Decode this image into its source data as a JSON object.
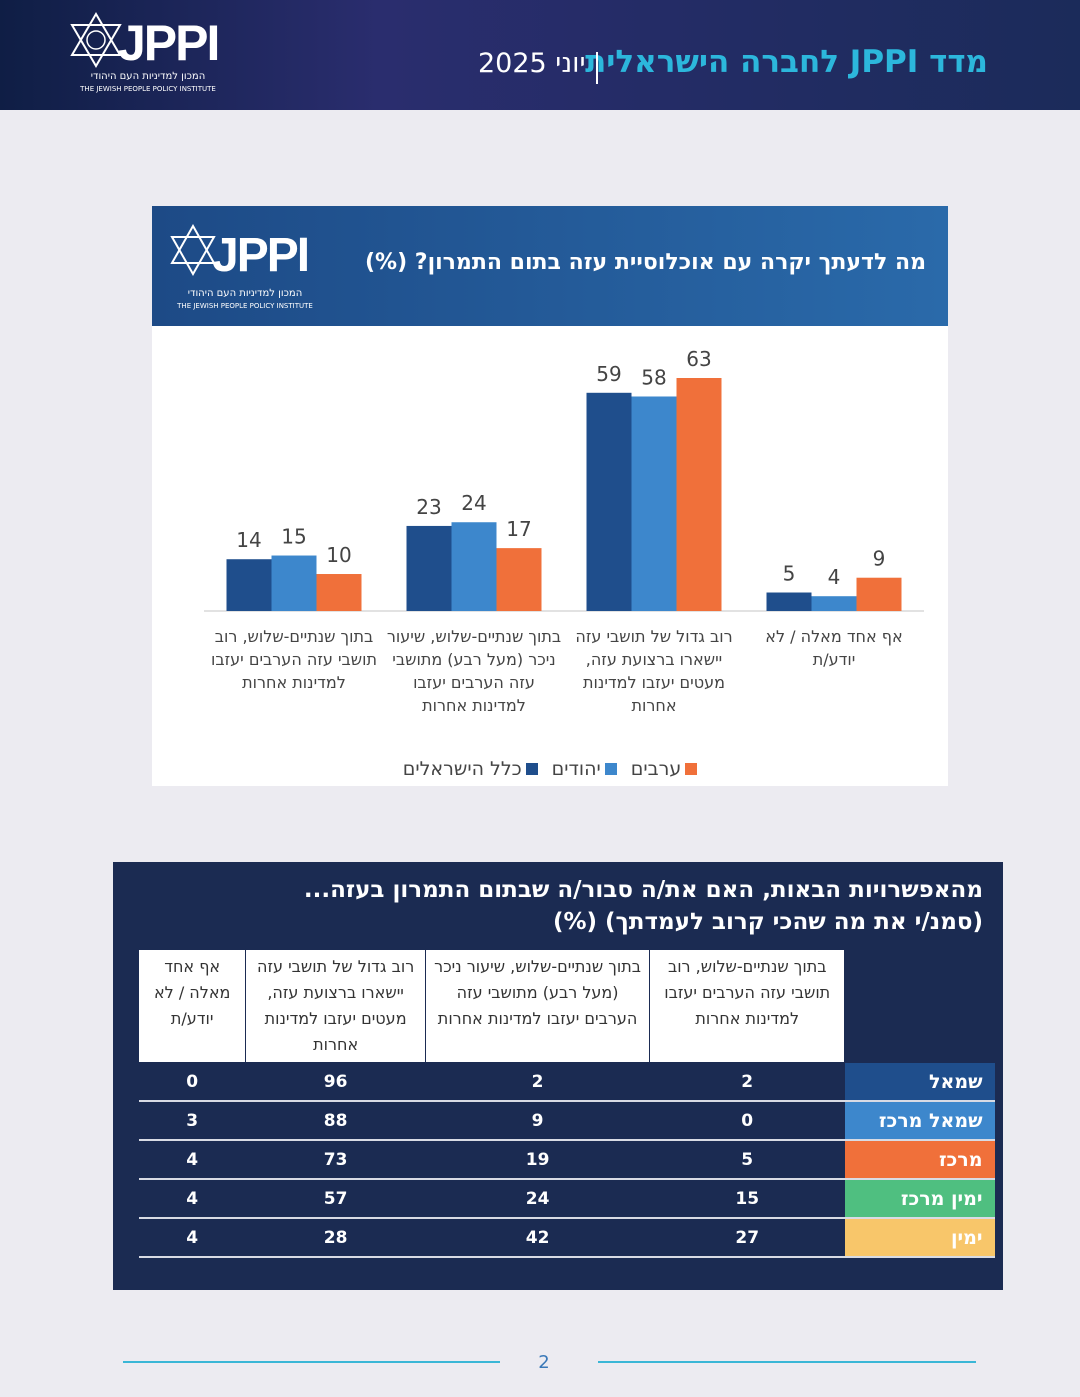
{
  "header": {
    "logo": "JPPI",
    "logo_he": "המכון למדיניות העם היהודי",
    "logo_en": "THE JEWISH PEOPLE POLICY INSTITUTE",
    "title": "מדד JPPI לחברה הישראלית",
    "date": "יוני 2025"
  },
  "chart_data": {
    "type": "bar",
    "title": "מה לדעתך יקרה עם אוכלוסיית עזה בתום התמרון? (%)",
    "categories": [
      "בתוך שנתיים-שלוש, רוב תושבי עזה הערבים יעזבו למדינות אחרות",
      "בתוך שנתיים-שלוש, שיעור ניכר (מעל רבע) מתושבי עזה הערבים יעזבו למדינות אחרות",
      "רוב גדול של תושבי עזה יישארו ברצועת עזה, מעטים יעזבו למדינות אחרות",
      "אף אחד מאלה / לא יודע/ת"
    ],
    "series": [
      {
        "name": "כלל הישראלים",
        "color": "#1f4e8c",
        "values": [
          14,
          23,
          59,
          5
        ]
      },
      {
        "name": "יהודים",
        "color": "#3d87cc",
        "values": [
          15,
          24,
          58,
          4
        ]
      },
      {
        "name": "ערבים",
        "color": "#f0703a",
        "values": [
          10,
          17,
          63,
          9
        ]
      }
    ],
    "legend": "bottom"
  },
  "table": {
    "title": [
      "מהאפשרויות הבאות, האם את/ה סבור/ה שבתום התמרון בעזה...",
      "(סמנ/י את מה שהכי קרוב לעמדתך) (%)"
    ],
    "columns": [
      "בתוך שנתיים-שלוש, רוב תושבי עזה הערבים יעזבו למדינות אחרות",
      "בתוך שנתיים-שלוש, שיעור ניכר (מעל רבע) מתושבי עזה הערבים יעזבו למדינות אחרות",
      "רוב גדול של תושבי עזה יישארו ברצועת עזה, מעטים יעזבו למדינות אחרות",
      "אף אחד מאלה / לא יודע/ת"
    ],
    "rows": [
      {
        "label": "שמאל",
        "color": "#1f4e8c",
        "values": [
          2,
          2,
          96,
          0
        ]
      },
      {
        "label": "שמאל מרכז",
        "color": "#3d87cc",
        "values": [
          0,
          9,
          88,
          3
        ]
      },
      {
        "label": "מרכז",
        "color": "#f0703a",
        "values": [
          5,
          19,
          73,
          4
        ]
      },
      {
        "label": "ימין מרכז",
        "color": "#4fbf80",
        "values": [
          15,
          24,
          57,
          4
        ]
      },
      {
        "label": "ימין",
        "color": "#f8c66a",
        "values": [
          27,
          42,
          28,
          4
        ]
      }
    ]
  },
  "footer": {
    "page": "2"
  }
}
